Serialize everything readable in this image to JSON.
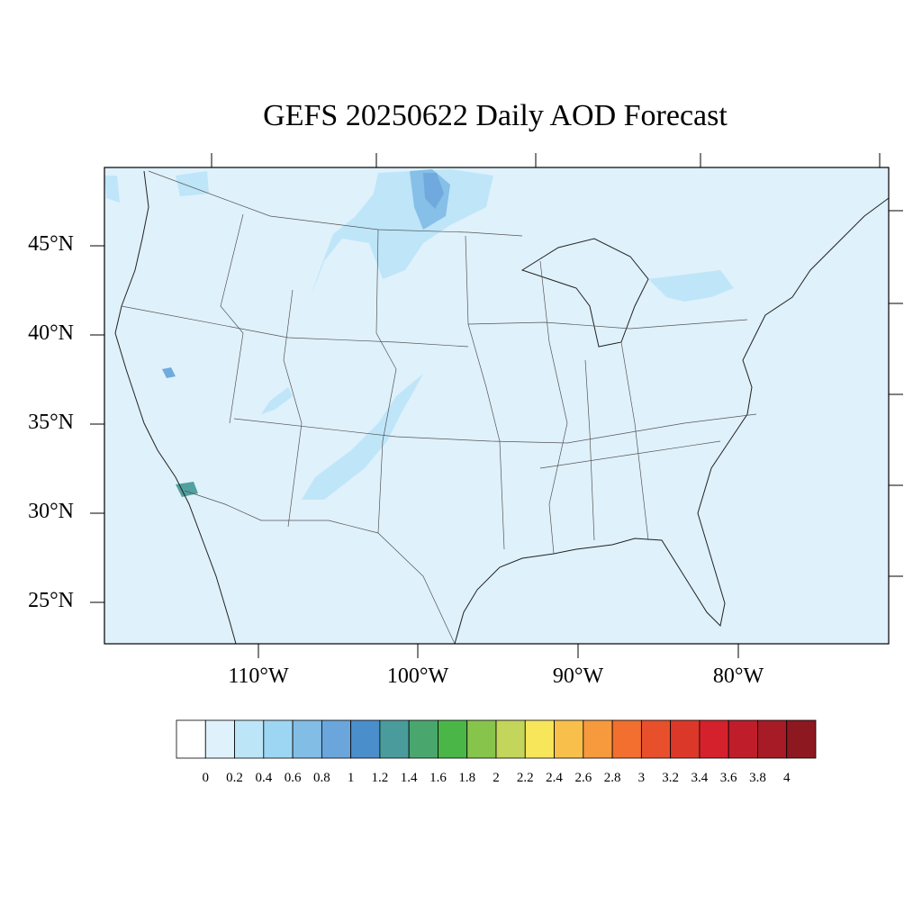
{
  "title": "GEFS 20250622 Daily AOD Forecast",
  "map": {
    "lat_labels": [
      {
        "text": "45°N",
        "value": 45
      },
      {
        "text": "40°N",
        "value": 40
      },
      {
        "text": "35°N",
        "value": 35
      },
      {
        "text": "30°N",
        "value": 30
      },
      {
        "text": "25°N",
        "value": 25
      }
    ],
    "lon_labels": [
      {
        "text": "110°W",
        "value": -110
      },
      {
        "text": "100°W",
        "value": -100
      },
      {
        "text": "90°W",
        "value": -90
      },
      {
        "text": "80°W",
        "value": -80
      }
    ],
    "background_color": "#dff1fb",
    "outline_color": "#333333"
  },
  "colorbar": {
    "labels": [
      "0",
      "0.2",
      "0.4",
      "0.6",
      "0.8",
      "1",
      "1.2",
      "1.4",
      "1.6",
      "1.8",
      "2",
      "2.2",
      "2.4",
      "2.6",
      "2.8",
      "3",
      "3.2",
      "3.4",
      "3.6",
      "3.8",
      "4"
    ],
    "colors": [
      "#ffffff",
      "#dff1fb",
      "#bde5f8",
      "#9dd6f3",
      "#82bde6",
      "#6aa6dc",
      "#4b8ecc",
      "#4a9c9c",
      "#49a76e",
      "#4ab648",
      "#87c44c",
      "#c3d55a",
      "#f7e55a",
      "#f8c04a",
      "#f69a3d",
      "#f26f2f",
      "#e84f2b",
      "#dc382a",
      "#d4212b",
      "#bf1d2a",
      "#a61b26",
      "#8e1820"
    ]
  }
}
